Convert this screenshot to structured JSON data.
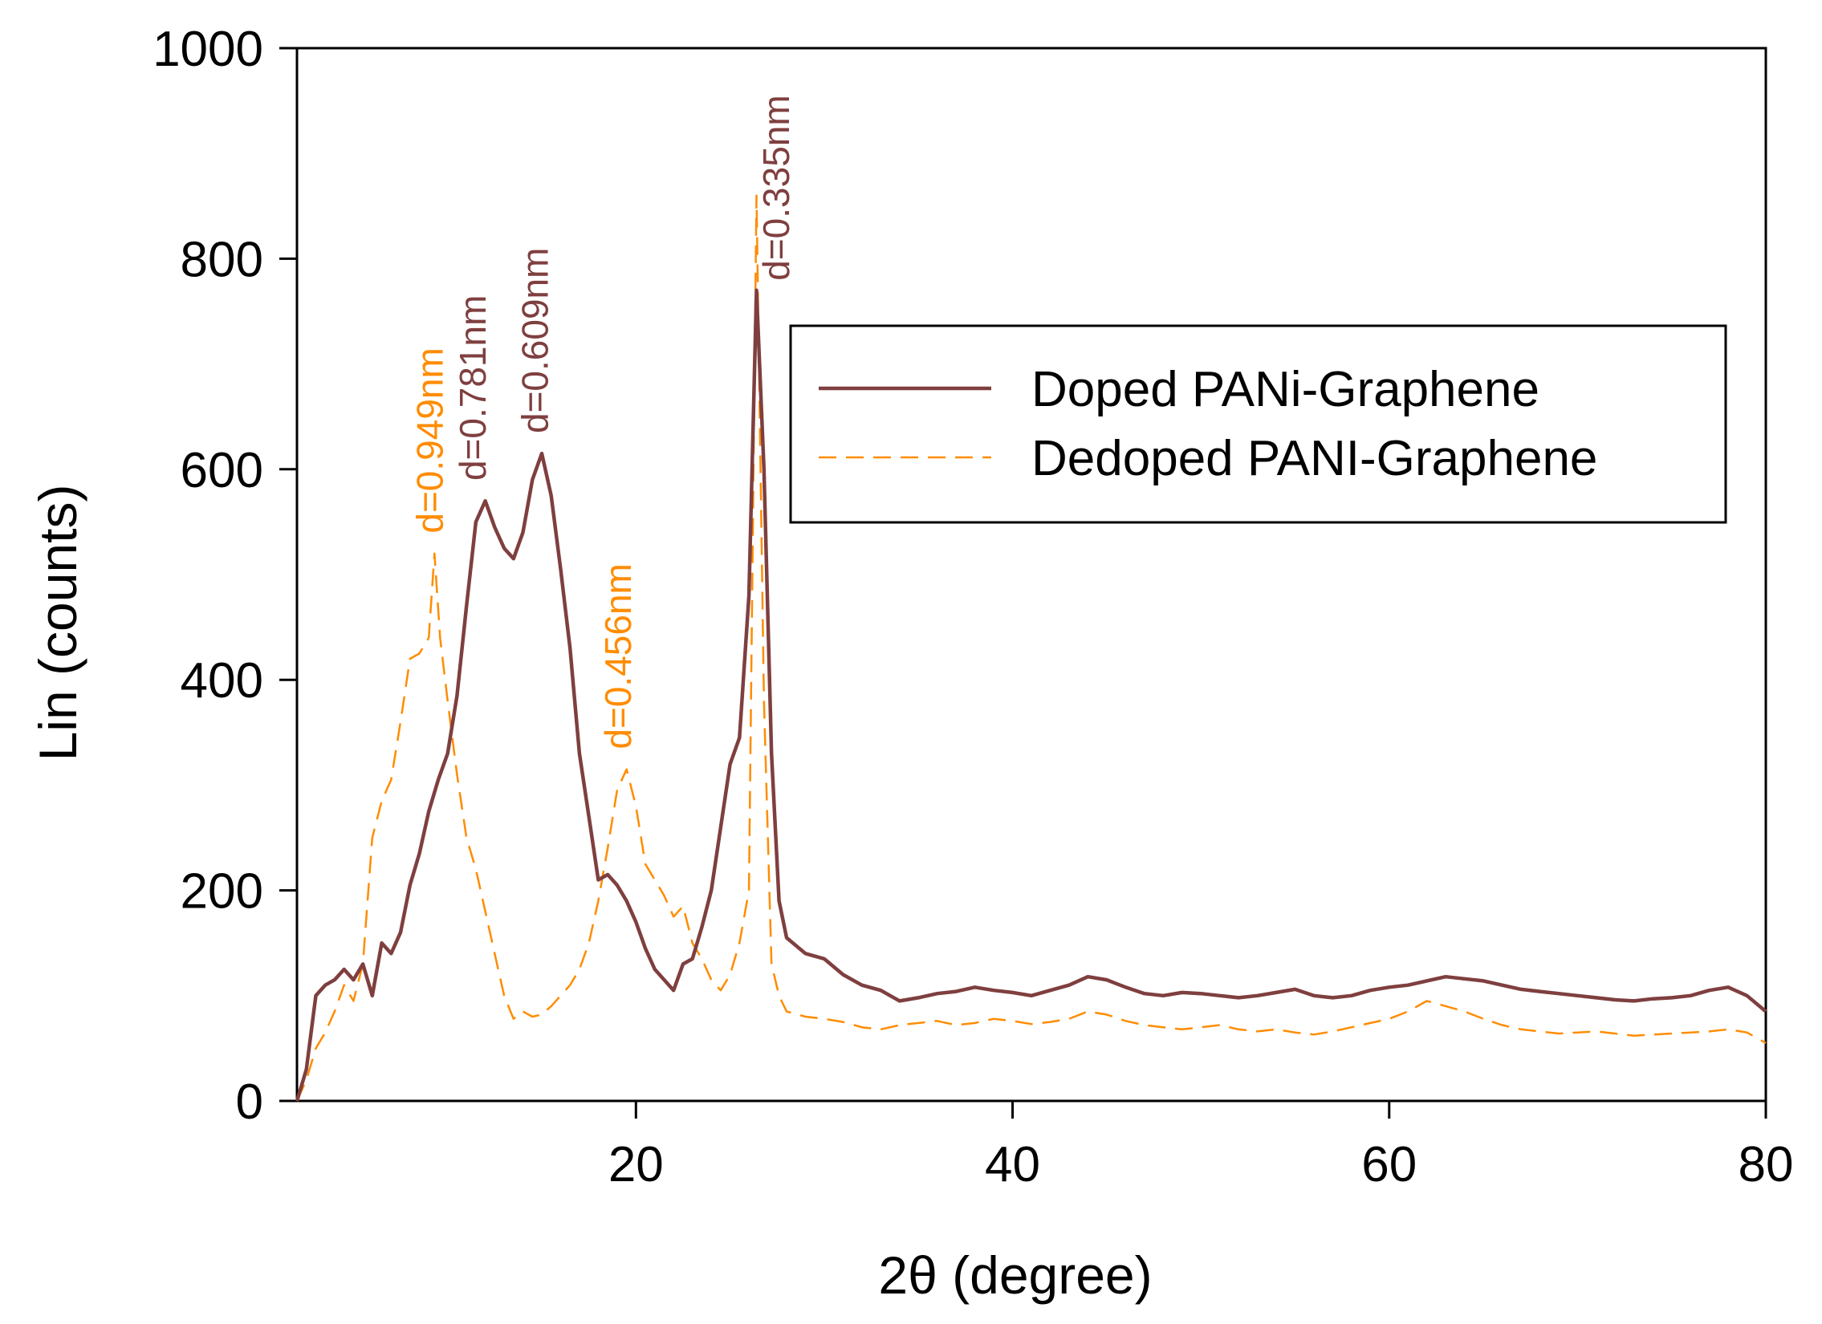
{
  "chart_data": {
    "type": "line",
    "title": "",
    "xlabel": "2θ (degree)",
    "ylabel": "Lin (counts)",
    "xlim": [
      2,
      80
    ],
    "ylim": [
      0,
      1000
    ],
    "xticks": [
      20,
      40,
      60,
      80
    ],
    "yticks": [
      0,
      200,
      400,
      600,
      800,
      1000
    ],
    "grid": false,
    "legend_position": "upper-right",
    "colors": {
      "doped": "#7f3f3f",
      "dedoped": "#ff8c00"
    },
    "series": [
      {
        "name": "Doped PANi-Graphene",
        "style": "solid",
        "points": [
          [
            2.0,
            0
          ],
          [
            2.5,
            30
          ],
          [
            3.0,
            100
          ],
          [
            3.5,
            110
          ],
          [
            4.0,
            115
          ],
          [
            4.5,
            125
          ],
          [
            5.0,
            115
          ],
          [
            5.5,
            130
          ],
          [
            6.0,
            100
          ],
          [
            6.5,
            150
          ],
          [
            7.0,
            140
          ],
          [
            7.5,
            160
          ],
          [
            8.0,
            205
          ],
          [
            8.5,
            235
          ],
          [
            9.0,
            275
          ],
          [
            9.5,
            305
          ],
          [
            10.0,
            330
          ],
          [
            10.5,
            385
          ],
          [
            11.0,
            470
          ],
          [
            11.5,
            550
          ],
          [
            12.0,
            570
          ],
          [
            12.5,
            545
          ],
          [
            13.0,
            525
          ],
          [
            13.5,
            515
          ],
          [
            14.0,
            540
          ],
          [
            14.5,
            590
          ],
          [
            15.0,
            615
          ],
          [
            15.5,
            575
          ],
          [
            16.0,
            505
          ],
          [
            16.5,
            430
          ],
          [
            17.0,
            330
          ],
          [
            17.5,
            270
          ],
          [
            18.0,
            210
          ],
          [
            18.5,
            215
          ],
          [
            19.0,
            205
          ],
          [
            19.5,
            190
          ],
          [
            20.0,
            170
          ],
          [
            20.5,
            145
          ],
          [
            21.0,
            125
          ],
          [
            21.5,
            115
          ],
          [
            22.0,
            105
          ],
          [
            22.5,
            130
          ],
          [
            23.0,
            135
          ],
          [
            23.5,
            165
          ],
          [
            24.0,
            200
          ],
          [
            24.5,
            260
          ],
          [
            25.0,
            320
          ],
          [
            25.5,
            345
          ],
          [
            26.0,
            480
          ],
          [
            26.4,
            770
          ],
          [
            26.8,
            600
          ],
          [
            27.2,
            330
          ],
          [
            27.6,
            190
          ],
          [
            28.0,
            155
          ],
          [
            29.0,
            140
          ],
          [
            30.0,
            135
          ],
          [
            31.0,
            120
          ],
          [
            32.0,
            110
          ],
          [
            33.0,
            105
          ],
          [
            34.0,
            95
          ],
          [
            35.0,
            98
          ],
          [
            36.0,
            102
          ],
          [
            37.0,
            104
          ],
          [
            38.0,
            108
          ],
          [
            39.0,
            105
          ],
          [
            40.0,
            103
          ],
          [
            41.0,
            100
          ],
          [
            42.0,
            105
          ],
          [
            43.0,
            110
          ],
          [
            44.0,
            118
          ],
          [
            45.0,
            115
          ],
          [
            46.0,
            108
          ],
          [
            47.0,
            102
          ],
          [
            48.0,
            100
          ],
          [
            49.0,
            103
          ],
          [
            50.0,
            102
          ],
          [
            51.0,
            100
          ],
          [
            52.0,
            98
          ],
          [
            53.0,
            100
          ],
          [
            54.0,
            103
          ],
          [
            55.0,
            106
          ],
          [
            56.0,
            100
          ],
          [
            57.0,
            98
          ],
          [
            58.0,
            100
          ],
          [
            59.0,
            105
          ],
          [
            60.0,
            108
          ],
          [
            61.0,
            110
          ],
          [
            62.0,
            114
          ],
          [
            63.0,
            118
          ],
          [
            64.0,
            116
          ],
          [
            65.0,
            114
          ],
          [
            66.0,
            110
          ],
          [
            67.0,
            106
          ],
          [
            68.0,
            104
          ],
          [
            69.0,
            102
          ],
          [
            70.0,
            100
          ],
          [
            71.0,
            98
          ],
          [
            72.0,
            96
          ],
          [
            73.0,
            95
          ],
          [
            74.0,
            97
          ],
          [
            75.0,
            98
          ],
          [
            76.0,
            100
          ],
          [
            77.0,
            105
          ],
          [
            78.0,
            108
          ],
          [
            79.0,
            100
          ],
          [
            80.0,
            85
          ]
        ]
      },
      {
        "name": "Dedoped PANI-Graphene",
        "style": "dashed",
        "points": [
          [
            2.0,
            0
          ],
          [
            2.5,
            20
          ],
          [
            3.0,
            50
          ],
          [
            3.5,
            65
          ],
          [
            4.0,
            85
          ],
          [
            4.5,
            110
          ],
          [
            5.0,
            95
          ],
          [
            5.5,
            130
          ],
          [
            6.0,
            250
          ],
          [
            6.5,
            285
          ],
          [
            7.0,
            305
          ],
          [
            7.5,
            360
          ],
          [
            8.0,
            420
          ],
          [
            8.5,
            425
          ],
          [
            9.0,
            440
          ],
          [
            9.3,
            520
          ],
          [
            9.6,
            440
          ],
          [
            10.0,
            380
          ],
          [
            10.5,
            310
          ],
          [
            11.0,
            250
          ],
          [
            11.5,
            220
          ],
          [
            12.0,
            180
          ],
          [
            12.5,
            140
          ],
          [
            13.0,
            100
          ],
          [
            13.5,
            78
          ],
          [
            14.0,
            85
          ],
          [
            14.5,
            80
          ],
          [
            15.0,
            82
          ],
          [
            15.5,
            90
          ],
          [
            16.0,
            100
          ],
          [
            16.5,
            110
          ],
          [
            17.0,
            125
          ],
          [
            17.5,
            150
          ],
          [
            18.0,
            190
          ],
          [
            18.5,
            240
          ],
          [
            19.0,
            295
          ],
          [
            19.5,
            315
          ],
          [
            20.0,
            280
          ],
          [
            20.5,
            225
          ],
          [
            21.0,
            210
          ],
          [
            21.5,
            195
          ],
          [
            22.0,
            175
          ],
          [
            22.5,
            185
          ],
          [
            23.0,
            150
          ],
          [
            23.5,
            135
          ],
          [
            24.0,
            115
          ],
          [
            24.5,
            105
          ],
          [
            25.0,
            120
          ],
          [
            25.5,
            150
          ],
          [
            26.0,
            200
          ],
          [
            26.4,
            860
          ],
          [
            26.8,
            380
          ],
          [
            27.2,
            130
          ],
          [
            27.6,
            100
          ],
          [
            28.0,
            85
          ],
          [
            29.0,
            80
          ],
          [
            30.0,
            78
          ],
          [
            31.0,
            75
          ],
          [
            32.0,
            70
          ],
          [
            33.0,
            68
          ],
          [
            34.0,
            72
          ],
          [
            35.0,
            74
          ],
          [
            36.0,
            76
          ],
          [
            37.0,
            72
          ],
          [
            38.0,
            74
          ],
          [
            39.0,
            78
          ],
          [
            40.0,
            76
          ],
          [
            41.0,
            73
          ],
          [
            42.0,
            75
          ],
          [
            43.0,
            78
          ],
          [
            44.0,
            85
          ],
          [
            45.0,
            82
          ],
          [
            46.0,
            76
          ],
          [
            47.0,
            72
          ],
          [
            48.0,
            70
          ],
          [
            49.0,
            68
          ],
          [
            50.0,
            70
          ],
          [
            51.0,
            72
          ],
          [
            52.0,
            68
          ],
          [
            53.0,
            66
          ],
          [
            54.0,
            68
          ],
          [
            55.0,
            65
          ],
          [
            56.0,
            63
          ],
          [
            57.0,
            66
          ],
          [
            58.0,
            70
          ],
          [
            59.0,
            74
          ],
          [
            60.0,
            78
          ],
          [
            61.0,
            85
          ],
          [
            62.0,
            95
          ],
          [
            63.0,
            90
          ],
          [
            64.0,
            85
          ],
          [
            65.0,
            78
          ],
          [
            66.0,
            72
          ],
          [
            67.0,
            68
          ],
          [
            68.0,
            66
          ],
          [
            69.0,
            64
          ],
          [
            70.0,
            65
          ],
          [
            71.0,
            66
          ],
          [
            72.0,
            64
          ],
          [
            73.0,
            62
          ],
          [
            74.0,
            63
          ],
          [
            75.0,
            64
          ],
          [
            76.0,
            65
          ],
          [
            77.0,
            66
          ],
          [
            78.0,
            68
          ],
          [
            79.0,
            65
          ],
          [
            80.0,
            55
          ]
        ]
      }
    ],
    "annotations": [
      {
        "text": "d=0.949nm",
        "x": 9.3,
        "y": 530,
        "series": "dedoped"
      },
      {
        "text": "d=0.781nm",
        "x": 11.6,
        "y": 580,
        "series": "doped"
      },
      {
        "text": "d=0.609nm",
        "x": 14.9,
        "y": 625,
        "series": "doped"
      },
      {
        "text": "d=0.456nm",
        "x": 19.3,
        "y": 325,
        "series": "dedoped"
      },
      {
        "text": "d=0.335nm",
        "x": 27.7,
        "y": 770,
        "series": "doped"
      }
    ]
  }
}
